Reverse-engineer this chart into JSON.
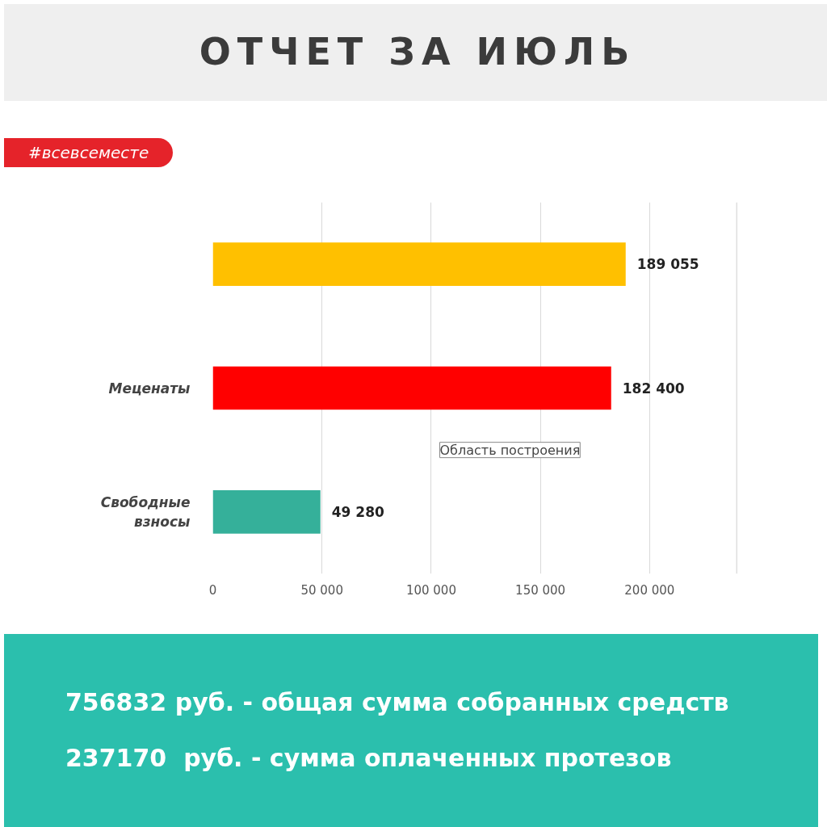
{
  "chart_data": {
    "type": "bar",
    "orientation": "horizontal",
    "title": "ОТЧЕТ ЗА ИЮЛЬ",
    "categories": [
      null,
      "Меценаты",
      "Свободные взносы"
    ],
    "values": [
      189055,
      182400,
      49280
    ],
    "colors": [
      "#ffc000",
      "#ff0000",
      "#35b09a"
    ],
    "value_labels": [
      "189 055",
      "182 400",
      "49 280"
    ],
    "xlim": [
      0,
      240000
    ],
    "xticks": [
      {
        "value": 0,
        "label": "0"
      },
      {
        "value": 50000,
        "label": "50 000"
      },
      {
        "value": 100000,
        "label": "100 000"
      },
      {
        "value": 150000,
        "label": "150 000"
      },
      {
        "value": 200000,
        "label": "200 000"
      }
    ],
    "grid": "x",
    "annotations": [
      "#всевсеместе",
      "Область построения",
      "756832 руб. - общая сумма собранных средств",
      "237170  руб. - сумма оплаченных протезов"
    ]
  }
}
